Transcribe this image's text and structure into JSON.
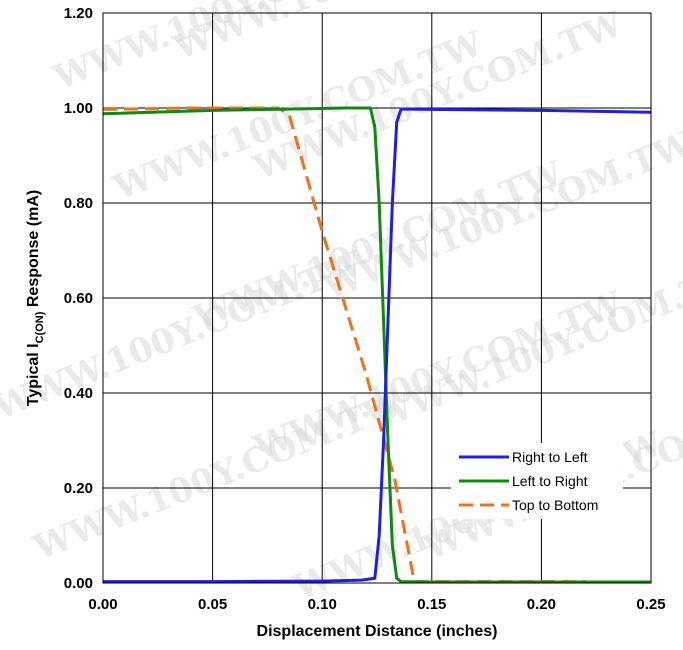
{
  "chart_data": {
    "type": "line",
    "title": "",
    "xlabel": "Displacement Distance (inches)",
    "ylabel_prefix": "Typical I",
    "ylabel_subscript": "C(ON)",
    "ylabel_suffix": " Response (mA)",
    "xlim": [
      0,
      0.25
    ],
    "ylim": [
      0,
      1.2
    ],
    "xticks": [
      0,
      0.05,
      0.1,
      0.15,
      0.2,
      0.25
    ],
    "xtick_labels": [
      "0.00",
      "0.05",
      "0.10",
      "0.15",
      "0.20",
      "0.25"
    ],
    "yticks": [
      0,
      0.2,
      0.4,
      0.6,
      0.8,
      1.0,
      1.2
    ],
    "ytick_labels": [
      "0.00",
      "0.20",
      "0.40",
      "0.60",
      "0.80",
      "1.00",
      "1.20"
    ],
    "grid": true,
    "legend_position": "bottom-right",
    "series": [
      {
        "name": "Right to Left",
        "color": "#1f1fe0",
        "dash": "solid",
        "x": [
          0.0,
          0.05,
          0.1,
          0.118,
          0.124,
          0.126,
          0.128,
          0.13,
          0.132,
          0.134,
          0.136,
          0.15,
          0.2,
          0.25
        ],
        "y": [
          0.003,
          0.003,
          0.004,
          0.006,
          0.01,
          0.1,
          0.3,
          0.55,
          0.8,
          0.97,
          0.998,
          0.997,
          0.995,
          0.991
        ]
      },
      {
        "name": "Left to Right",
        "color": "#118811",
        "dash": "solid",
        "x": [
          0.0,
          0.05,
          0.1,
          0.11,
          0.122,
          0.124,
          0.126,
          0.128,
          0.13,
          0.132,
          0.134,
          0.136,
          0.15,
          0.2,
          0.25
        ],
        "y": [
          0.988,
          0.995,
          0.999,
          1.0,
          1.0,
          0.96,
          0.8,
          0.55,
          0.3,
          0.08,
          0.01,
          0.003,
          0.002,
          0.002,
          0.002
        ]
      },
      {
        "name": "Top to Bottom",
        "color": "#f07020",
        "dash": "dashed",
        "x": [
          0.0,
          0.04,
          0.08,
          0.085,
          0.1,
          0.12,
          0.133,
          0.142,
          0.15,
          0.18,
          0.2,
          0.22
        ],
        "y": [
          0.997,
          1.0,
          1.0,
          0.985,
          0.74,
          0.44,
          0.22,
          0.003,
          0.003,
          0.003,
          0.003,
          0.003
        ]
      }
    ]
  },
  "watermark": "WWW.100Y.COM.TW"
}
